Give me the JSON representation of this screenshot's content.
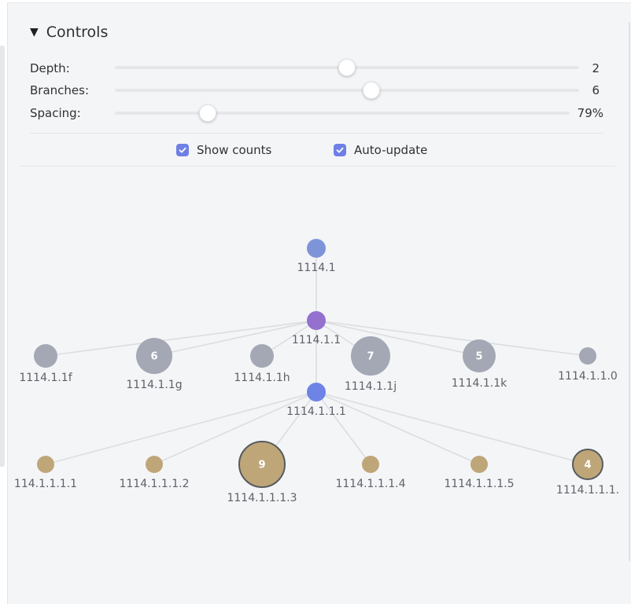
{
  "controls": {
    "title": "Controls",
    "depth": {
      "label": "Depth:",
      "value": "2"
    },
    "branches": {
      "label": "Branches:",
      "value": "6"
    },
    "spacing": {
      "label": "Spacing:",
      "value": "79%"
    },
    "show_counts": {
      "label": "Show counts",
      "checked": true
    },
    "auto_update": {
      "label": "Auto-update",
      "checked": true
    }
  },
  "colors": {
    "root": "#7d94d9",
    "mid": "#9470cf",
    "focus": "#6d83e6",
    "grey_node": "#a4a8b5",
    "leaf": "#bfa678",
    "edge": "#dcdde1",
    "checkbox": "#6e7fe6"
  },
  "graph": {
    "root_label": "1114.1",
    "mid_label": "1114.1.1",
    "focus_label": "1114.1.1.1",
    "level2": [
      {
        "label": "1114.1.1f",
        "count": ""
      },
      {
        "label": "1114.1.1g",
        "count": "6"
      },
      {
        "label": "1114.1.1h",
        "count": ""
      },
      {
        "label": "1114.1.1j",
        "count": "7"
      },
      {
        "label": "1114.1.1k",
        "count": "5"
      },
      {
        "label": "1114.1.1.0",
        "count": ""
      }
    ],
    "level3": [
      {
        "label": "114.1.1.1.1",
        "count": ""
      },
      {
        "label": "1114.1.1.1.2",
        "count": ""
      },
      {
        "label": "1114.1.1.1.3",
        "count": "9"
      },
      {
        "label": "1114.1.1.1.4",
        "count": ""
      },
      {
        "label": "1114.1.1.1.5",
        "count": ""
      },
      {
        "label": "1114.1.1.1.",
        "count": "4"
      }
    ]
  }
}
